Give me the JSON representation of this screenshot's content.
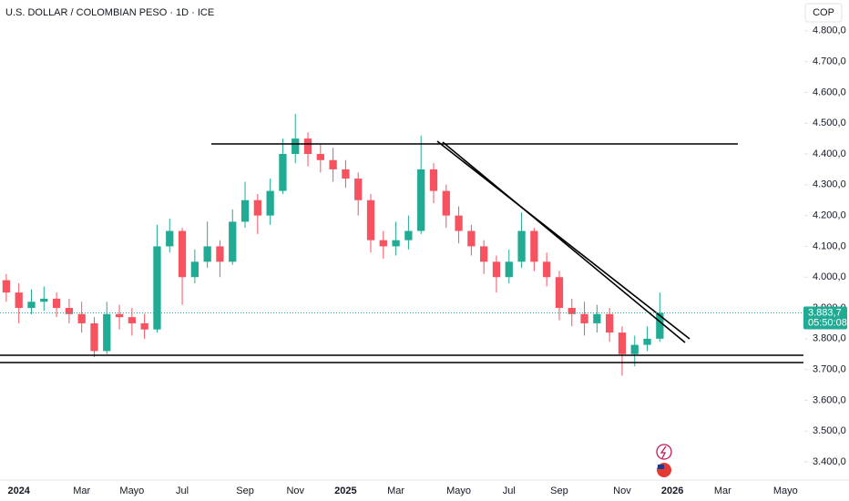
{
  "chart_data": {
    "type": "candlestick",
    "title": "U.S. DOLLAR / COLOMBIAN PESO · 1D · ICE",
    "currency": "COP",
    "categories": [
      null,
      "2024",
      null,
      null,
      null,
      null,
      "Mar",
      null,
      null,
      null,
      "Mayo",
      null,
      null,
      null,
      "Jul",
      null,
      null,
      null,
      null,
      "Sep",
      null,
      null,
      null,
      "Nov",
      null,
      null,
      null,
      "2025",
      null,
      null,
      null,
      "Mar",
      null,
      null,
      null,
      null,
      "Mayo",
      null,
      null,
      null,
      "Jul",
      null,
      null,
      null,
      "Sep",
      null,
      null,
      null,
      null,
      "Nov",
      null,
      null,
      null,
      "2026",
      null,
      null,
      null,
      "Mar",
      null,
      null,
      null,
      null,
      "Mayo",
      null
    ],
    "open": [
      3990,
      3950,
      3900,
      3920,
      3930,
      3900,
      3880,
      3850,
      3760,
      3880,
      3870,
      3850,
      3830,
      4100,
      4150,
      4000,
      4050,
      4100,
      4050,
      4180,
      4250,
      4200,
      4280,
      4400,
      4450,
      4400,
      4380,
      4350,
      4320,
      4250,
      4120,
      4100,
      4120,
      4150,
      4350,
      4280,
      4200,
      4150,
      4100,
      4050,
      4000,
      4050,
      4150,
      4050,
      4000,
      3900,
      3880,
      3850,
      3880,
      3820,
      3750,
      3780,
      3800,
      null,
      null,
      null,
      null,
      null,
      null,
      null,
      null,
      null,
      null,
      null
    ],
    "high": [
      4010,
      3980,
      3960,
      3970,
      3950,
      3930,
      3920,
      3870,
      3920,
      3910,
      3900,
      3880,
      4170,
      4190,
      4160,
      4090,
      4180,
      4120,
      4220,
      4310,
      4270,
      4320,
      4450,
      4530,
      4470,
      4430,
      4420,
      4380,
      4340,
      4270,
      4150,
      4180,
      4200,
      4460,
      4370,
      4300,
      4230,
      4170,
      4120,
      4070,
      4090,
      4210,
      4160,
      4080,
      4020,
      3930,
      3920,
      3910,
      3900,
      3840,
      3810,
      3840,
      3950,
      null,
      null,
      null,
      null,
      null,
      null,
      null,
      null,
      null,
      null,
      null
    ],
    "low": [
      3920,
      3850,
      3880,
      3890,
      3870,
      3850,
      3820,
      3740,
      3750,
      3830,
      3810,
      3800,
      3820,
      4080,
      3910,
      3980,
      4030,
      4000,
      4040,
      4160,
      4140,
      4170,
      4270,
      4370,
      4360,
      4340,
      4310,
      4290,
      4200,
      4080,
      4060,
      4070,
      4090,
      4140,
      4240,
      4160,
      4110,
      4070,
      4010,
      3950,
      3980,
      4030,
      4020,
      3970,
      3860,
      3840,
      3810,
      3820,
      3790,
      3680,
      3710,
      3760,
      3790,
      null,
      null,
      null,
      null,
      null,
      null,
      null,
      null,
      null,
      null,
      null
    ],
    "close": [
      3950,
      3900,
      3920,
      3930,
      3900,
      3880,
      3850,
      3760,
      3880,
      3870,
      3850,
      3830,
      4100,
      4150,
      4000,
      4050,
      4100,
      4050,
      4180,
      4250,
      4200,
      4280,
      4400,
      4450,
      4400,
      4380,
      4350,
      4320,
      4250,
      4120,
      4100,
      4120,
      4150,
      4350,
      4280,
      4200,
      4150,
      4100,
      4050,
      4000,
      4050,
      4150,
      4050,
      4000,
      3900,
      3880,
      3850,
      3880,
      3820,
      3750,
      3780,
      3800,
      3884,
      null,
      null,
      null,
      null,
      null,
      null,
      null,
      null,
      null,
      null,
      null
    ],
    "up_color": "#22ab94",
    "down_color": "#f7525f",
    "last_price": {
      "value": 3883.7,
      "label": "3.883,7"
    },
    "countdown": "05:50:08",
    "ylim": [
      3341,
      4900
    ],
    "yticks": [
      {
        "value": 3400,
        "label": "3.400,0"
      },
      {
        "value": 3500,
        "label": "3.500,0"
      },
      {
        "value": 3600,
        "label": "3.600,0"
      },
      {
        "value": 3700,
        "label": "3.700,0"
      },
      {
        "value": 3800,
        "label": "3.800,0"
      },
      {
        "value": 3900,
        "label": "3.900,0"
      },
      {
        "value": 4000,
        "label": "4.000,0"
      },
      {
        "value": 4100,
        "label": "4.100,0"
      },
      {
        "value": 4200,
        "label": "4.200,0"
      },
      {
        "value": 4300,
        "label": "4.300,0"
      },
      {
        "value": 4400,
        "label": "4.400,0"
      },
      {
        "value": 4500,
        "label": "4.500,0"
      },
      {
        "value": 4600,
        "label": "4.600,0"
      },
      {
        "value": 4700,
        "label": "4.700,0"
      },
      {
        "value": 4800,
        "label": "4.800,0"
      }
    ],
    "grid": false
  }
}
